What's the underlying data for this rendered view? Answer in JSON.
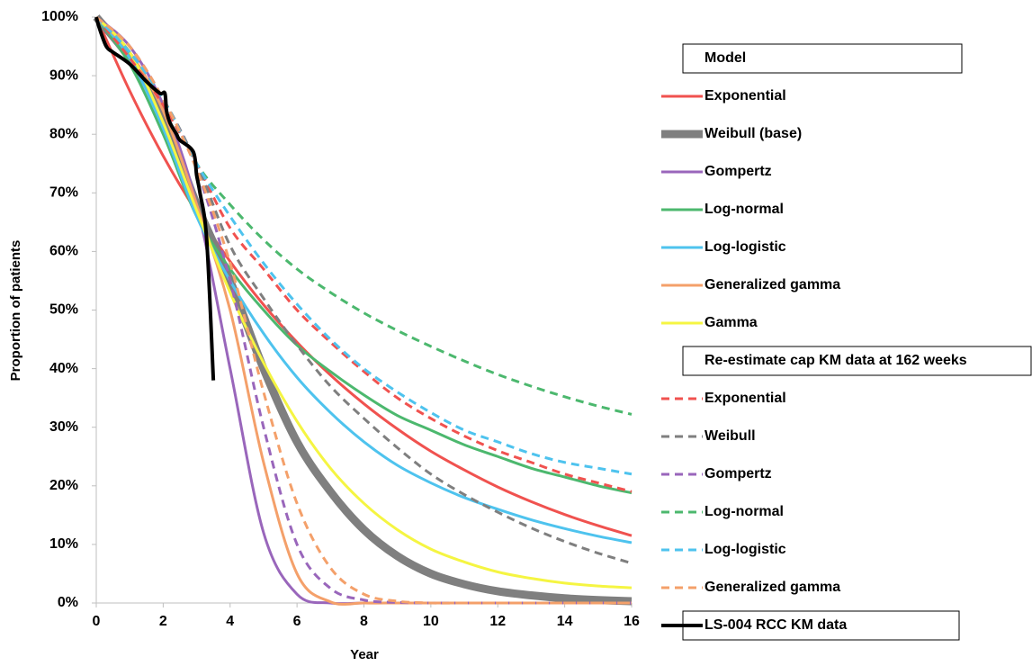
{
  "chart_data": {
    "type": "line",
    "x_label": "Year",
    "y_label": "Proportion of patients",
    "xlim": [
      0,
      16
    ],
    "xticks": [
      0,
      2,
      4,
      6,
      8,
      10,
      12,
      14,
      16
    ],
    "ylim": [
      0,
      100
    ],
    "yticks": [
      {
        "value": 0,
        "label": "0%"
      },
      {
        "value": 10,
        "label": "10%"
      },
      {
        "value": 20,
        "label": "20%"
      },
      {
        "value": 30,
        "label": "30%"
      },
      {
        "value": 40,
        "label": "40%"
      },
      {
        "value": 50,
        "label": "50%"
      },
      {
        "value": 60,
        "label": "60%"
      },
      {
        "value": 70,
        "label": "70%"
      },
      {
        "value": 80,
        "label": "80%"
      },
      {
        "value": 90,
        "label": "90%"
      },
      {
        "value": 100,
        "label": "100%"
      }
    ],
    "x": [
      0,
      1,
      2,
      3,
      4,
      5,
      6,
      7,
      8,
      9,
      10,
      11,
      12,
      13,
      14,
      15,
      16
    ],
    "groups": [
      {
        "title": "Model",
        "series": [
          {
            "name": "Exponential",
            "color": "#f0524f",
            "values": [
              100,
              87.4,
              76.3,
              66.7,
              58.3,
              50.9,
              44.5,
              38.9,
              34,
              29.7,
              25.9,
              22.7,
              19.8,
              17.3,
              15.1,
              13.2,
              11.5
            ]
          },
          {
            "name": "Weibull (base)",
            "color": "#7f7f7f",
            "thick": true,
            "values": [
              100,
              93,
              83,
              68,
              55,
              40,
              27.5,
              19,
              12.5,
              8,
              5,
              3.2,
              2,
              1.3,
              0.8,
              0.5,
              0.3
            ]
          },
          {
            "name": "Gompertz",
            "color": "#9966bb",
            "values": [
              100,
              95,
              85,
              68,
              40,
              12,
              1.5,
              0,
              0,
              0,
              0,
              0,
              0,
              0,
              0,
              0,
              0
            ]
          },
          {
            "name": "Log-normal",
            "color": "#4cb86e",
            "values": [
              100,
              92,
              80,
              66,
              57,
              50,
              44,
              39.5,
              35.5,
              32,
              29.5,
              27,
              25,
              23,
              21.5,
              20,
              18.8
            ]
          },
          {
            "name": "Log-logistic",
            "color": "#4ec3ee",
            "values": [
              100,
              93,
              81,
              66,
              55,
              46,
              38.5,
              32.5,
              27.5,
              23.5,
              20.5,
              18,
              16,
              14.2,
              12.7,
              11.4,
              10.3
            ]
          },
          {
            "name": "Generalized gamma",
            "color": "#f4a06a",
            "values": [
              100,
              94,
              84,
              68,
              50,
              24,
              5,
              0.2,
              0,
              0,
              0,
              0,
              0,
              0,
              0,
              0,
              0
            ]
          },
          {
            "name": "Gamma",
            "color": "#f5f542",
            "values": [
              100,
              94,
              82,
              67,
              53,
              41,
              31,
              23,
              17,
              12.5,
              9.2,
              7,
              5.3,
              4.2,
              3.4,
              2.9,
              2.6
            ]
          }
        ]
      },
      {
        "title": "Re-estimate cap KM data at 162 weeks",
        "series": [
          {
            "name": "Exponential",
            "color": "#f0524f",
            "dashed": true,
            "values": [
              100,
              93,
              85,
              75,
              64,
              57,
              50,
              44.5,
              39.5,
              35,
              31.5,
              28.5,
              26,
              24,
              22,
              20.5,
              19
            ]
          },
          {
            "name": "Weibull",
            "color": "#7f7f7f",
            "dashed": true,
            "values": [
              100,
              94,
              86,
              75,
              61,
              52,
              44,
              37,
              31.5,
              26.5,
              22,
              18.5,
              15.5,
              12.8,
              10.5,
              8.5,
              6.8
            ]
          },
          {
            "name": "Gompertz",
            "color": "#9966bb",
            "dashed": true,
            "values": [
              100,
              95,
              86,
              74,
              55,
              30,
              10,
              2.5,
              0.5,
              0.1,
              0,
              0,
              0,
              0,
              0,
              0,
              0
            ]
          },
          {
            "name": "Log-normal",
            "color": "#4cb86e",
            "dashed": true,
            "values": [
              100,
              94,
              86,
              75,
              68,
              62,
              57,
              53,
              49.5,
              46.5,
              43.8,
              41.3,
              39,
              37,
              35.2,
              33.6,
              32.2
            ]
          },
          {
            "name": "Log-logistic",
            "color": "#4ec3ee",
            "dashed": true,
            "values": [
              100,
              94,
              86,
              75,
              66,
              58,
              51,
              45,
              40,
              36,
              32.5,
              29.5,
              27.5,
              25.5,
              24,
              23,
              22
            ]
          },
          {
            "name": "Generalized gamma",
            "color": "#f4a06a",
            "dashed": true,
            "values": [
              100,
              95,
              86,
              74,
              58,
              36,
              17,
              6,
              1.5,
              0.3,
              0,
              0,
              0,
              0,
              0,
              0,
              0
            ]
          }
        ]
      }
    ],
    "series": [
      {
        "name": "LS-004 RCC KM data",
        "color": "#000000",
        "x": [
          0,
          0.1,
          0.3,
          0.5,
          1,
          1.5,
          1.9,
          2.05,
          2.1,
          2.2,
          2.4,
          2.5,
          2.9,
          3.0,
          3.1,
          3.3,
          3.5
        ],
        "values": [
          100,
          98,
          95,
          94,
          92,
          89,
          87,
          87,
          84,
          82,
          80,
          79,
          77,
          73,
          70,
          62,
          38
        ]
      }
    ]
  }
}
